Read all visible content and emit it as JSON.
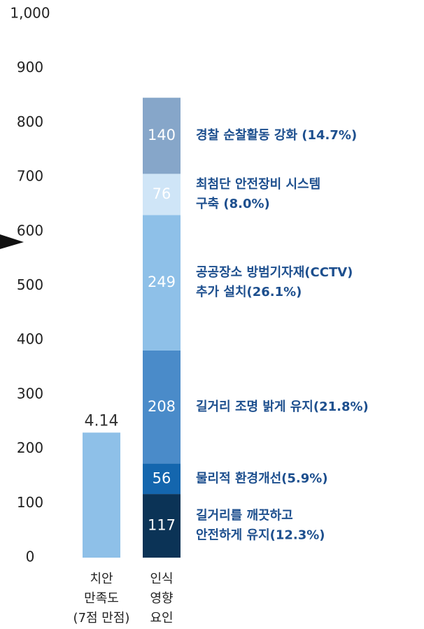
{
  "chart_data": {
    "type": "bar",
    "stacked": true,
    "categories": [
      [
        "치안",
        "만족도",
        "(7점 만점)"
      ],
      [
        "인식",
        "영향",
        "요인"
      ]
    ],
    "ylim": [
      0,
      1000
    ],
    "yticks": [
      0,
      100,
      200,
      300,
      400,
      500,
      600,
      700,
      800,
      900,
      {
        "value": 1000,
        "label": "1,000"
      }
    ],
    "y2lim": [
      0,
      18
    ],
    "series": [
      {
        "name": [
          "치안 만족도"
        ],
        "color": "#8ec0e8",
        "values": [
          4.14,
          null
        ],
        "axis": "y2",
        "own_label": true
      },
      {
        "name": [
          "길거리를 깨끗하고",
          "안전하게 유지(12.3%)"
        ],
        "color": "#0b3356",
        "values": [
          null,
          117
        ]
      },
      {
        "name": [
          "물리적 환경개선(5.9%)"
        ],
        "color": "#1466ae",
        "values": [
          null,
          56
        ]
      },
      {
        "name": [
          "길거리 조명 밝게 유지(21.8%)"
        ],
        "color": "#4a8bc9",
        "values": [
          null,
          208
        ]
      },
      {
        "name": [
          "공공장소 방범기자재(CCTV)",
          "추가 설치(26.1%)"
        ],
        "color": "#8ec0e8",
        "values": [
          null,
          249
        ]
      },
      {
        "name": [
          "최첨단 안전장비 시스템",
          "구축 (8.0%)"
        ],
        "color": "#cfe5f7",
        "values": [
          null,
          76
        ]
      },
      {
        "name": [
          "경찰 순찰활동 강화 (14.7%)"
        ],
        "color": "#86a6c9",
        "values": [
          null,
          140
        ]
      }
    ]
  }
}
